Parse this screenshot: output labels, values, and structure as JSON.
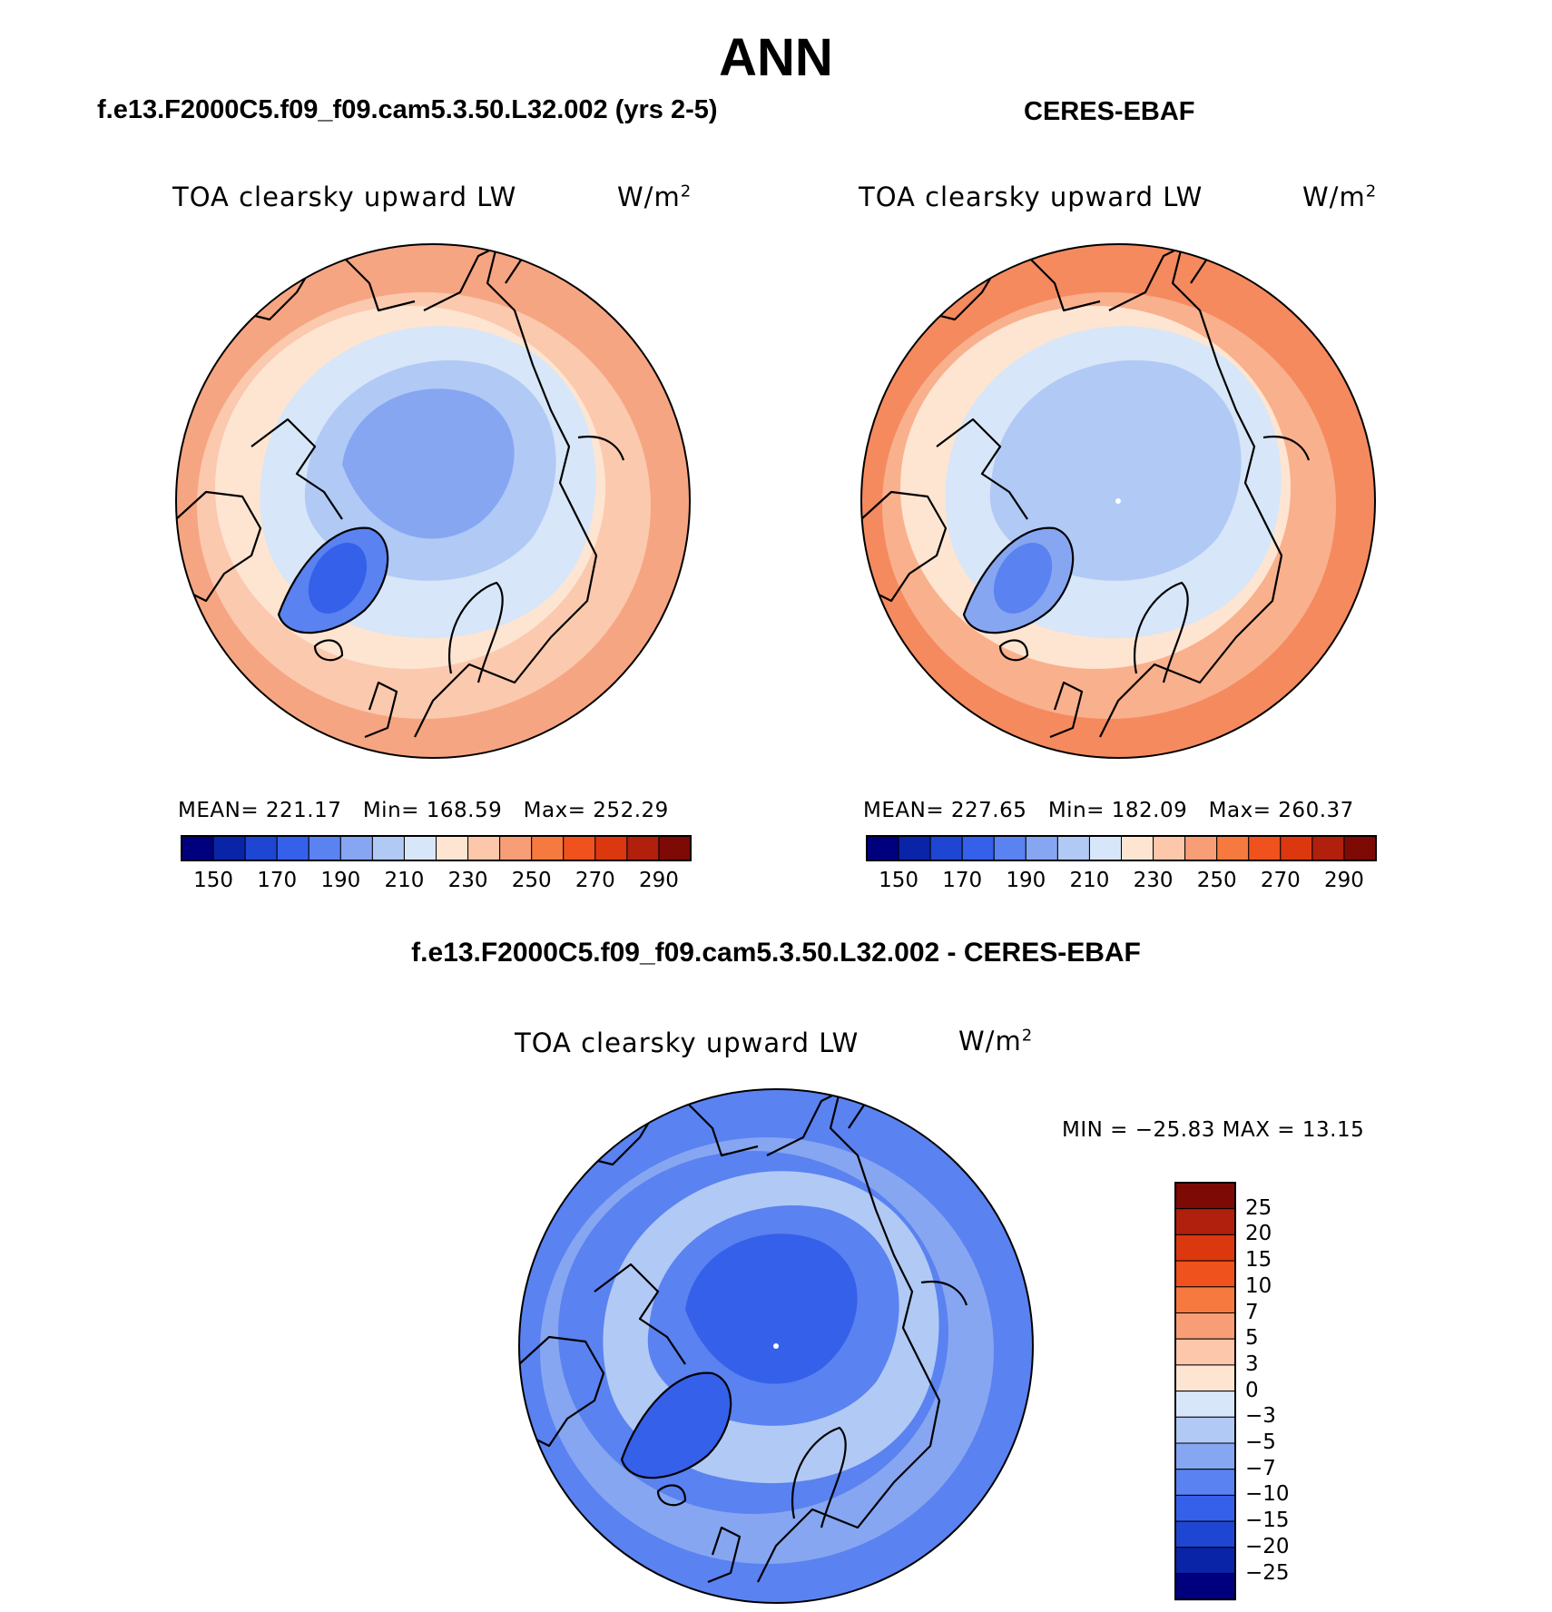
{
  "title": "ANN",
  "panels": [
    {
      "header": "f.e13.F2000C5.f09_f09.cam5.3.50.L32.002 (yrs 2-5)",
      "field": "TOA clearsky upward LW",
      "units": "W/m",
      "units_sup": "2",
      "stats": {
        "mean_label": "MEAN=",
        "mean": "221.17",
        "min_label": "Min=",
        "min": "168.59",
        "max_label": "Max=",
        "max": "252.29"
      }
    },
    {
      "header": "CERES-EBAF",
      "field": "TOA clearsky upward LW",
      "units": "W/m",
      "units_sup": "2",
      "stats": {
        "mean_label": "MEAN=",
        "mean": "227.65",
        "min_label": "Min=",
        "min": "182.09",
        "max_label": "Max=",
        "max": "260.37"
      }
    }
  ],
  "diff": {
    "header": "f.e13.F2000C5.f09_f09.cam5.3.50.L32.002 - CERES-EBAF",
    "field": "TOA clearsky upward LW",
    "units": "W/m",
    "units_sup": "2",
    "minmax": "MIN = −25.83 MAX =  13.15"
  },
  "colorbar_abs": {
    "colors": [
      "#00007f",
      "#0a24a8",
      "#1e46d2",
      "#3560ea",
      "#5a82f0",
      "#86a6f2",
      "#b1c9f5",
      "#d7e6f8",
      "#fde5d2",
      "#fcc7aa",
      "#f89e76",
      "#f6793f",
      "#f0521e",
      "#dc380f",
      "#b0200c",
      "#7d0a05"
    ],
    "labels": [
      "150",
      "170",
      "190",
      "210",
      "230",
      "250",
      "270",
      "290"
    ]
  },
  "colorbar_diff": {
    "colors": [
      "#7d0a05",
      "#b0200c",
      "#dc380f",
      "#f0521e",
      "#f6793f",
      "#f89e76",
      "#fcc7aa",
      "#fde5d2",
      "#d7e6f8",
      "#b1c9f5",
      "#86a6f2",
      "#5a82f0",
      "#3560ea",
      "#1e46d2",
      "#0a24a8",
      "#00007f"
    ],
    "labels": [
      "25",
      "20",
      "15",
      "10",
      "7",
      "5",
      "3",
      "0",
      "−3",
      "−5",
      "−7",
      "−10",
      "−15",
      "−20",
      "−25"
    ]
  },
  "maps": {
    "model": {
      "outer": "#f6a582",
      "ring3": "#fbc9ae",
      "ring2": "#fde5d2",
      "ring1": "#d7e6f8",
      "ring0": "#b1c9f5",
      "core": "#86a6f2",
      "greenland": "#5a82f0",
      "greenland_core": "#3560ea"
    },
    "obs": {
      "outer": "#f58a5f",
      "ring3": "#f9b08d",
      "ring2": "#fde5d2",
      "ring1": "#d7e6f8",
      "ring0": "#b1c9f5",
      "core": "#b1c9f5",
      "greenland": "#86a6f2",
      "greenland_core": "#5a82f0"
    },
    "diff": {
      "outer": "#5a82f0",
      "ring3": "#86a6f2",
      "ring2": "#5a82f0",
      "ring1": "#b1c9f5",
      "ring0": "#5a82f0",
      "core": "#3560ea",
      "greenland": "#3560ea",
      "greenland_core": "#3560ea"
    }
  }
}
